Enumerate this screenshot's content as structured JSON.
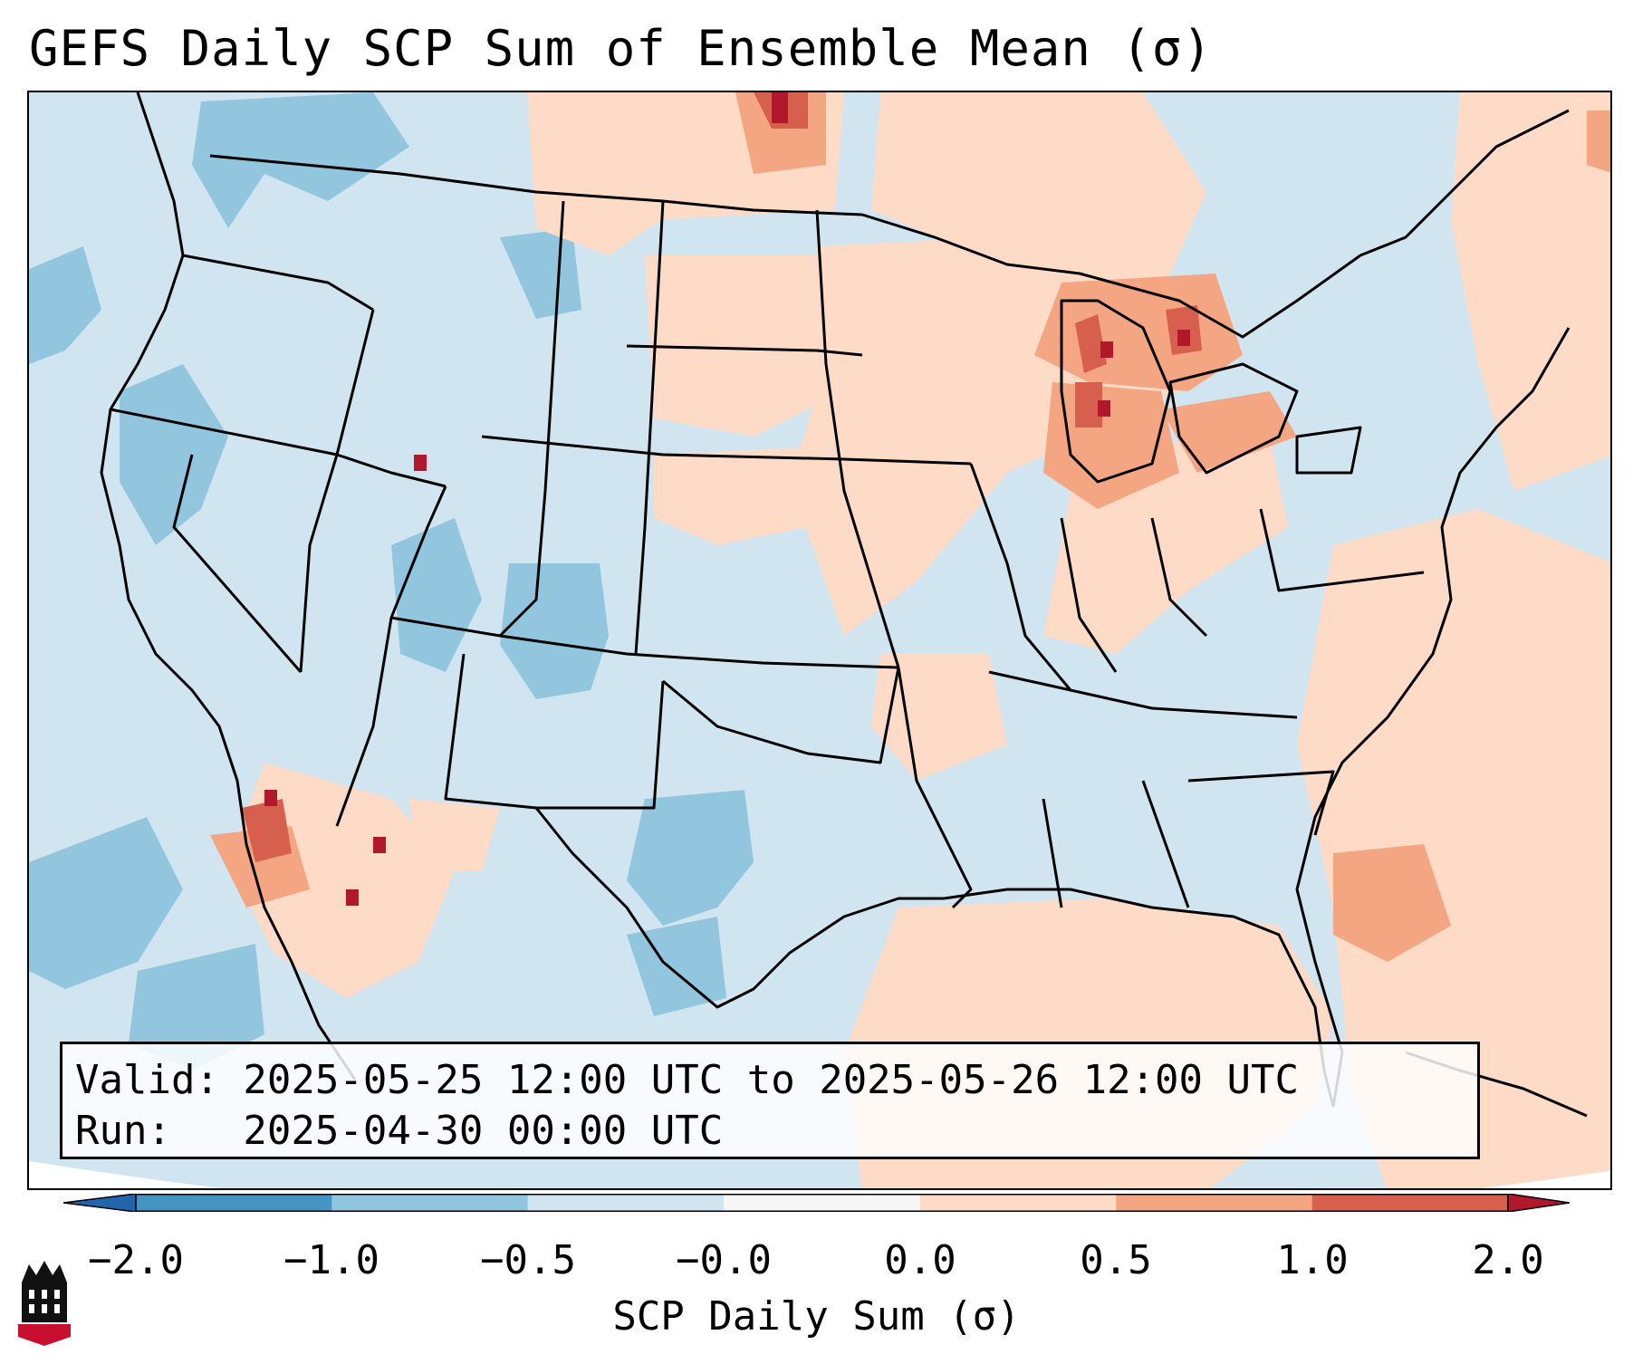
{
  "title": "GEFS Daily SCP Sum of Ensemble Mean (σ)",
  "info": {
    "valid": "Valid: 2025-05-25 12:00 UTC to 2025-05-26 12:00 UTC",
    "run": "Run:   2025-04-30 00:00 UTC"
  },
  "colorbar": {
    "label": "SCP Daily Sum (σ)",
    "ticks": [
      "−2.0",
      "−1.0",
      "−0.5",
      "−0.0",
      "0.0",
      "0.5",
      "1.0",
      "2.0"
    ],
    "bin_colors": [
      "#2166ac",
      "#4393c3",
      "#92c5de",
      "#d1e5f0",
      "#f7f7f7",
      "#fddbc7",
      "#f4a582",
      "#d6604d",
      "#b2182b"
    ]
  },
  "map": {
    "projection": "Lambert Conformal (CONUS)",
    "features": [
      "US state borders",
      "coastlines",
      "Great Lakes",
      "Canada",
      "Mexico",
      "Caribbean"
    ],
    "colors": {
      "background_field": "#d1e5f0",
      "border": "#000000"
    },
    "highlights": [
      {
        "region": "Lower Michigan / Great Lakes",
        "level": "1.0 to 2.0"
      },
      {
        "region": "North Dakota",
        "level": "1.0 to 2.0"
      },
      {
        "region": "Baja California / Sonora",
        "level": "1.0 to 2.0"
      },
      {
        "region": "Western Atlantic off Georgia",
        "level": "0.5 to 1.0"
      }
    ]
  },
  "logo": {
    "text": "NIU"
  }
}
